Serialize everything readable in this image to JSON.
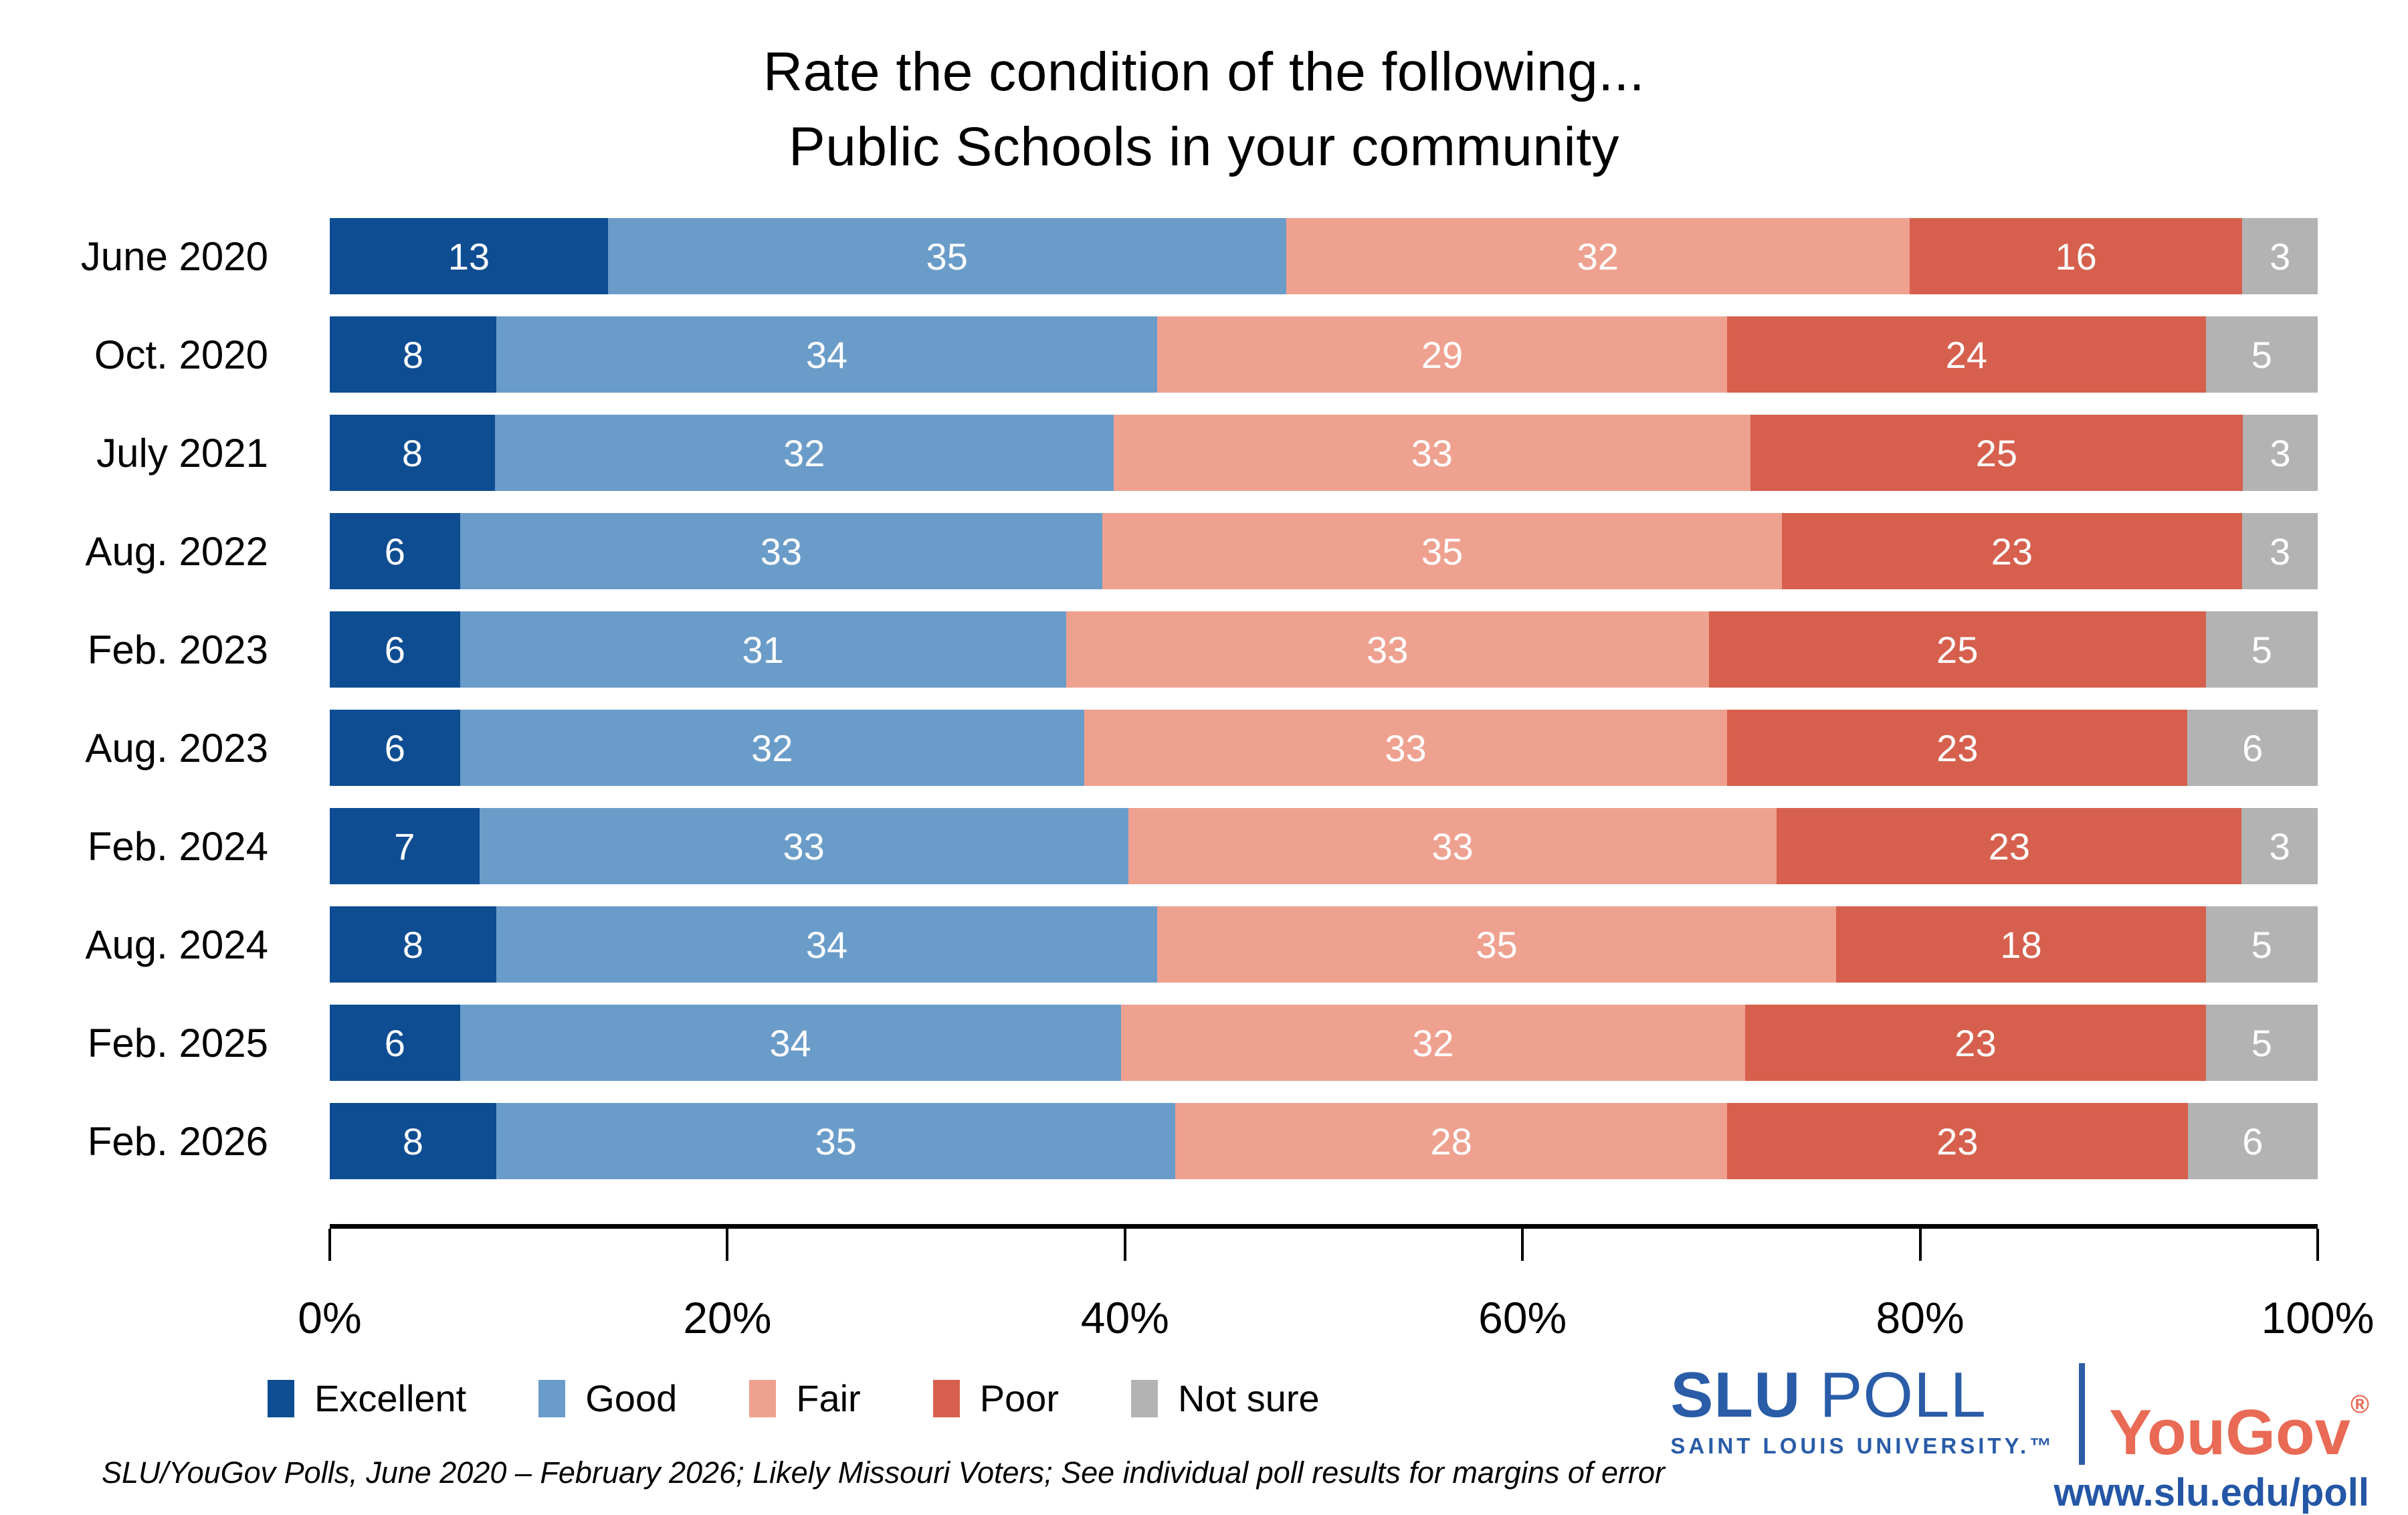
{
  "title": {
    "line1": "Rate the condition of the following...",
    "line2": "Public Schools in your community"
  },
  "chart_data": {
    "type": "bar",
    "stacked": true,
    "orientation": "horizontal",
    "title": "Rate the condition of the following... Public Schools in your community",
    "categories": [
      "June 2020",
      "Oct. 2020",
      "July 2021",
      "Aug. 2022",
      "Feb. 2023",
      "Aug. 2023",
      "Feb. 2024",
      "Aug. 2024",
      "Feb. 2025",
      "Feb. 2026"
    ],
    "series": [
      {
        "name": "Excellent",
        "color": "#0E4D92",
        "values": [
          13,
          8,
          8,
          6,
          6,
          6,
          7,
          8,
          6,
          8
        ]
      },
      {
        "name": "Good",
        "color": "#6A9CC9",
        "values": [
          35,
          34,
          32,
          33,
          31,
          32,
          33,
          34,
          34,
          35
        ]
      },
      {
        "name": "Fair",
        "color": "#EFA190",
        "values": [
          32,
          29,
          33,
          35,
          33,
          33,
          33,
          35,
          32,
          28
        ]
      },
      {
        "name": "Poor",
        "color": "#D6604D",
        "values": [
          16,
          24,
          25,
          23,
          25,
          23,
          23,
          18,
          23,
          23
        ]
      },
      {
        "name": "Not sure",
        "color": "#B3B3B3",
        "values": [
          3,
          5,
          3,
          3,
          5,
          6,
          3,
          5,
          5,
          6
        ]
      }
    ],
    "value_labels": "shown in white inside each segment",
    "xlim": [
      0,
      100
    ],
    "x_ticks": [
      "0%",
      "20%",
      "40%",
      "60%",
      "80%",
      "100%"
    ],
    "grid": false,
    "legend_position": "bottom-left"
  },
  "footer": {
    "note": "SLU/YouGov Polls, June 2020 – February 2026; Likely Missouri Voters; See individual poll results for margins of error"
  },
  "branding": {
    "slu": "SLU",
    "poll": "POLL",
    "university": "SAINT LOUIS UNIVERSITY.™",
    "yougov": "YouGov",
    "registered": "®",
    "url": "www.slu.edu/poll",
    "slu_blue": "#2A5CA8",
    "yougov_red": "#E96A55"
  }
}
